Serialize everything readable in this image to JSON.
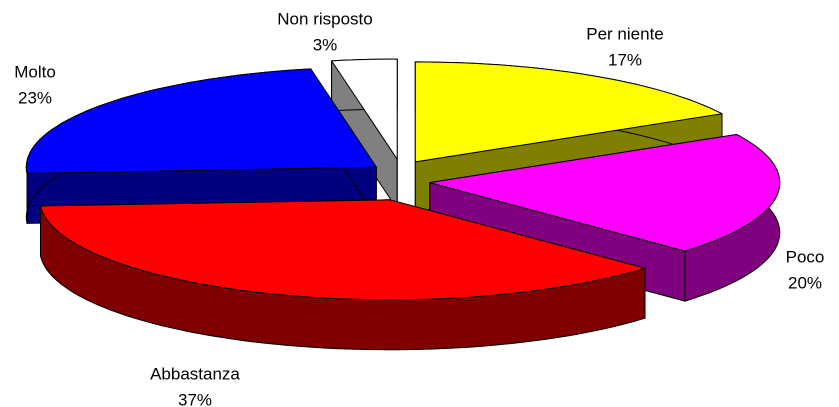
{
  "chart_data": {
    "type": "pie",
    "categories": [
      "Per niente",
      "Poco",
      "Abbastanza",
      "Molto",
      "Non risposto"
    ],
    "values": [
      17,
      20,
      37,
      23,
      3
    ],
    "value_labels": [
      "17%",
      "20%",
      "37%",
      "23%",
      "3%"
    ],
    "colors": [
      "#ffff00",
      "#ff00ff",
      "#ff0000",
      "#0000ff",
      "#ffffff"
    ]
  }
}
